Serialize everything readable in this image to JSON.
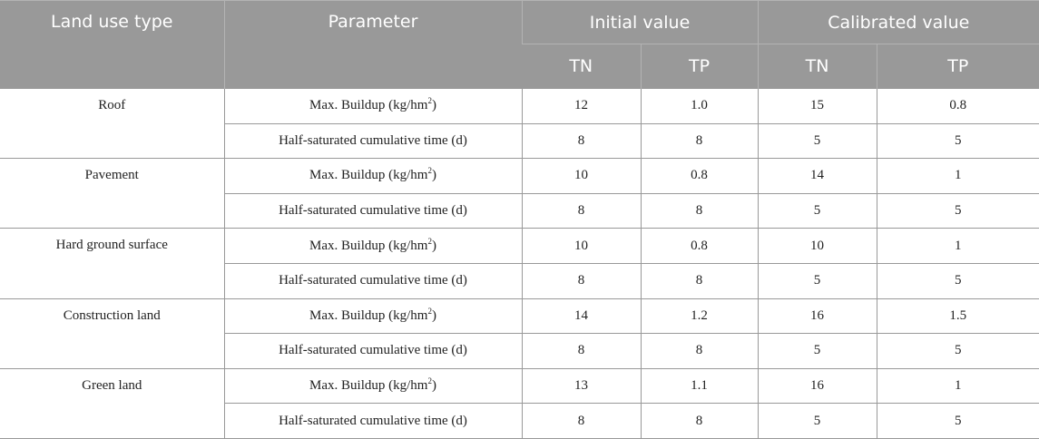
{
  "headers": {
    "land_use_type": "Land use type",
    "parameter": "Parameter",
    "initial_value": "Initial value",
    "calibrated_value": "Calibrated value",
    "tn": "TN",
    "tp": "TP"
  },
  "param_labels": {
    "max_buildup_prefix": "Max. Buildup (kg/hm",
    "max_buildup_sup": "2",
    "max_buildup_suffix": ")",
    "half_saturated": "Half-saturated cumulative time (d)"
  },
  "rows": [
    {
      "land_use": "Roof",
      "max_buildup": {
        "init_tn": "12",
        "init_tp": "1.0",
        "cal_tn": "15",
        "cal_tp": "0.8"
      },
      "half_saturated": {
        "init_tn": "8",
        "init_tp": "8",
        "cal_tn": "5",
        "cal_tp": "5"
      }
    },
    {
      "land_use": "Pavement",
      "max_buildup": {
        "init_tn": "10",
        "init_tp": "0.8",
        "cal_tn": "14",
        "cal_tp": "1"
      },
      "half_saturated": {
        "init_tn": "8",
        "init_tp": "8",
        "cal_tn": "5",
        "cal_tp": "5"
      }
    },
    {
      "land_use": "Hard ground surface",
      "max_buildup": {
        "init_tn": "10",
        "init_tp": "0.8",
        "cal_tn": "10",
        "cal_tp": "1"
      },
      "half_saturated": {
        "init_tn": "8",
        "init_tp": "8",
        "cal_tn": "5",
        "cal_tp": "5"
      }
    },
    {
      "land_use": "Construction land",
      "max_buildup": {
        "init_tn": "14",
        "init_tp": "1.2",
        "cal_tn": "16",
        "cal_tp": "1.5"
      },
      "half_saturated": {
        "init_tn": "8",
        "init_tp": "8",
        "cal_tn": "5",
        "cal_tp": "5"
      }
    },
    {
      "land_use": "Green land",
      "max_buildup": {
        "init_tn": "13",
        "init_tp": "1.1",
        "cal_tn": "16",
        "cal_tp": "1"
      },
      "half_saturated": {
        "init_tn": "8",
        "init_tp": "8",
        "cal_tn": "5",
        "cal_tp": "5"
      }
    }
  ]
}
